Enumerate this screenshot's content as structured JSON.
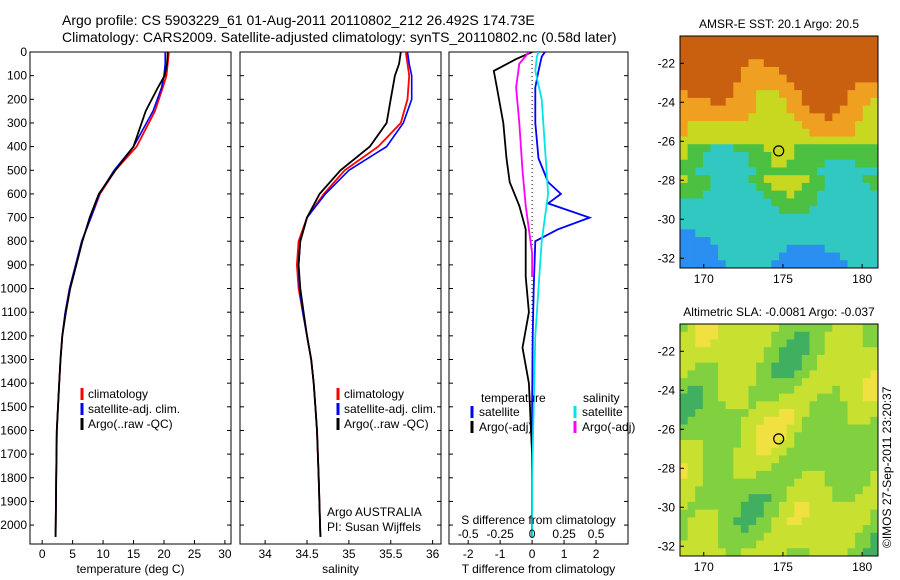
{
  "header": {
    "line1": "Argo profile: CS 5903229_61 01-Aug-2011 20110802_212 26.492S 174.73E",
    "line2": "Climatology: CARS2009. Satellite-adjusted climatology: synTS_20110802.nc (0.58d later)"
  },
  "footer": {
    "float_info": "Argo AUSTRALIA",
    "pi": "PI: Susan Wijffels",
    "watermark": "©IMOS 27-Sep-2011 23:20:37"
  },
  "chart_data": [
    {
      "type": "line",
      "panel": "temperature",
      "xlabel": "temperature (deg C)",
      "xlim": [
        -2,
        31
      ],
      "xticks": [
        0,
        5,
        10,
        15,
        20,
        25,
        30
      ],
      "ylim": [
        2080,
        0
      ],
      "yticks": [
        0,
        100,
        200,
        300,
        400,
        500,
        600,
        700,
        800,
        900,
        1000,
        1100,
        1200,
        1300,
        1400,
        1500,
        1600,
        1700,
        1800,
        1900,
        2000
      ],
      "legend": [
        "climatology",
        "satellite-adj. clim.",
        "Argo(..raw -QC)"
      ],
      "colors": {
        "climatology": "#ff0000",
        "satellite": "#0000ff",
        "argo": "#000000"
      },
      "series": [
        {
          "name": "climatology",
          "x": [
            20.8,
            20.6,
            20.4,
            19.8,
            18.5,
            15.5,
            12.0,
            9.5,
            8.0,
            6.5,
            5.5,
            4.5,
            3.8,
            3.3,
            3.0,
            2.8,
            2.6,
            2.4,
            2.3,
            2.2
          ],
          "y": [
            0,
            50,
            100,
            150,
            250,
            400,
            500,
            600,
            700,
            800,
            900,
            1000,
            1100,
            1200,
            1300,
            1400,
            1500,
            1600,
            1800,
            2050
          ]
        },
        {
          "name": "satellite-adj. clim.",
          "x": [
            20.2,
            20.2,
            20.0,
            19.6,
            18.2,
            15.0,
            11.8,
            9.4,
            8.0,
            6.5,
            5.5,
            4.5,
            3.8,
            3.3,
            3.0,
            2.8,
            2.6,
            2.4,
            2.3,
            2.2
          ],
          "y": [
            0,
            50,
            100,
            150,
            250,
            400,
            500,
            600,
            700,
            800,
            900,
            1000,
            1100,
            1200,
            1300,
            1400,
            1500,
            1600,
            1800,
            2050
          ]
        },
        {
          "name": "Argo(..raw -QC)",
          "x": [
            20.6,
            20.5,
            20.1,
            19.0,
            17.0,
            15.0,
            12.0,
            9.3,
            7.8,
            6.6,
            5.6,
            4.6,
            3.9,
            3.3,
            3.0,
            2.8,
            2.6,
            2.4,
            2.3,
            2.2
          ],
          "y": [
            0,
            50,
            100,
            150,
            250,
            400,
            500,
            600,
            700,
            800,
            900,
            1000,
            1100,
            1200,
            1300,
            1400,
            1500,
            1600,
            1800,
            2050
          ]
        }
      ]
    },
    {
      "type": "line",
      "panel": "salinity",
      "xlabel": "salinity",
      "xlim": [
        33.7,
        36.1
      ],
      "xticks": [
        34,
        34.5,
        35,
        35.5,
        36
      ],
      "ylim": [
        2080,
        0
      ],
      "legend": [
        "climatology",
        "satellite-adj. clim.",
        "Argo(..raw -QC)"
      ],
      "series": [
        {
          "name": "climatology",
          "x": [
            35.68,
            35.7,
            35.72,
            35.7,
            35.62,
            35.35,
            34.95,
            34.7,
            34.5,
            34.4,
            34.38,
            34.4,
            34.45,
            34.5,
            34.55,
            34.58,
            34.6,
            34.62,
            34.64,
            34.66
          ],
          "y": [
            0,
            50,
            100,
            200,
            300,
            400,
            500,
            600,
            700,
            800,
            900,
            1000,
            1100,
            1200,
            1300,
            1400,
            1500,
            1600,
            1800,
            2050
          ]
        },
        {
          "name": "satellite-adj. clim.",
          "x": [
            35.7,
            35.72,
            35.75,
            35.75,
            35.65,
            35.45,
            35.0,
            34.72,
            34.5,
            34.42,
            34.4,
            34.41,
            34.45,
            34.5,
            34.55,
            34.58,
            34.6,
            34.62,
            34.64,
            34.66
          ],
          "y": [
            0,
            50,
            100,
            200,
            300,
            400,
            500,
            600,
            700,
            800,
            900,
            1000,
            1100,
            1200,
            1300,
            1400,
            1500,
            1600,
            1800,
            2050
          ]
        },
        {
          "name": "Argo(..raw -QC)",
          "x": [
            35.62,
            35.6,
            35.55,
            35.5,
            35.45,
            35.25,
            34.9,
            34.65,
            34.5,
            34.42,
            34.4,
            34.42,
            34.46,
            34.5,
            34.55,
            34.58,
            34.6,
            34.62,
            34.64,
            34.66
          ],
          "y": [
            0,
            50,
            100,
            200,
            300,
            400,
            500,
            600,
            700,
            800,
            900,
            1000,
            1100,
            1200,
            1300,
            1400,
            1500,
            1600,
            1800,
            2050
          ]
        }
      ]
    },
    {
      "type": "line",
      "panel": "difference",
      "xlabel": "T difference from climatology",
      "xlabel_top": "S difference from climatology",
      "xlim": [
        -2.6,
        3.0
      ],
      "xticks": [
        -2,
        -1,
        0,
        1,
        2
      ],
      "top_tick_labels": [
        "-0.5",
        "-0.25",
        "0",
        "0.25",
        "0.5"
      ],
      "top_tick_values": [
        -2,
        -1,
        0,
        1,
        2
      ],
      "ylim": [
        2080,
        0
      ],
      "legend_temperature": [
        "satellite",
        "Argo(-adj)"
      ],
      "legend_salinity": [
        "satellite",
        "Argo(-adj)"
      ],
      "legend_headers": [
        "temperature",
        "salinity"
      ],
      "colors": {
        "t_satellite": "#0000ff",
        "t_argo": "#000000",
        "s_satellite": "#00e5e5",
        "s_argo": "#ff00ff"
      },
      "series": [
        {
          "name": "temperature satellite",
          "x": [
            0.4,
            0.3,
            0.2,
            0.1,
            0.1,
            0.2,
            0.5,
            0.9,
            0.5,
            1.8,
            0.8,
            0.1,
            0.05,
            0.02,
            0.0,
            0.0,
            0.0
          ],
          "y": [
            0,
            20,
            80,
            150,
            300,
            450,
            550,
            600,
            640,
            700,
            750,
            800,
            1000,
            1200,
            1500,
            1800,
            2050
          ]
        },
        {
          "name": "temperature Argo(-adj)",
          "x": [
            0.0,
            -0.5,
            -1.2,
            -1.1,
            -0.9,
            -0.8,
            -0.7,
            -0.4,
            -0.2,
            -0.2,
            -0.2,
            -0.1,
            -0.3,
            -0.1,
            0.0,
            0.0
          ],
          "y": [
            0,
            30,
            80,
            150,
            300,
            450,
            550,
            650,
            750,
            850,
            950,
            1100,
            1250,
            1400,
            1700,
            2050
          ]
        },
        {
          "name": "salinity satellite",
          "x": [
            0.2,
            0.15,
            0.1,
            0.3,
            0.4,
            0.5,
            0.4,
            0.3,
            0.2,
            0.1,
            0.05,
            0.0,
            0.0
          ],
          "y": [
            0,
            20,
            80,
            200,
            400,
            600,
            700,
            800,
            1000,
            1200,
            1500,
            1800,
            2050
          ]
        },
        {
          "name": "salinity Argo(-adj)",
          "x": [
            -0.1,
            -0.4,
            -0.5,
            -0.4,
            -0.3,
            -0.2,
            -0.1,
            0.0,
            0.0
          ],
          "y": [
            0,
            50,
            150,
            300,
            500,
            650,
            750,
            850,
            950
          ]
        }
      ]
    },
    {
      "type": "heatmap",
      "panel": "sst_map",
      "title": "AMSR-E SST: 20.1 Argo: 20.5",
      "xlim": [
        168.5,
        181
      ],
      "ylim": [
        -32.5,
        -20.6
      ],
      "xticks": [
        170,
        175,
        180
      ],
      "yticks": [
        -22,
        -24,
        -26,
        -28,
        -30,
        -32
      ],
      "profile_location": {
        "lon": 174.73,
        "lat": -26.492
      }
    },
    {
      "type": "heatmap",
      "panel": "sla_map",
      "title": "Altimetric SLA: -0.0081 Argo: -0.037",
      "xlim": [
        168.5,
        181
      ],
      "ylim": [
        -32.5,
        -20.6
      ],
      "xticks": [
        170,
        175,
        180
      ],
      "yticks": [
        -22,
        -24,
        -26,
        -28,
        -30,
        -32
      ],
      "profile_location": {
        "lon": 174.73,
        "lat": -26.492
      }
    }
  ]
}
